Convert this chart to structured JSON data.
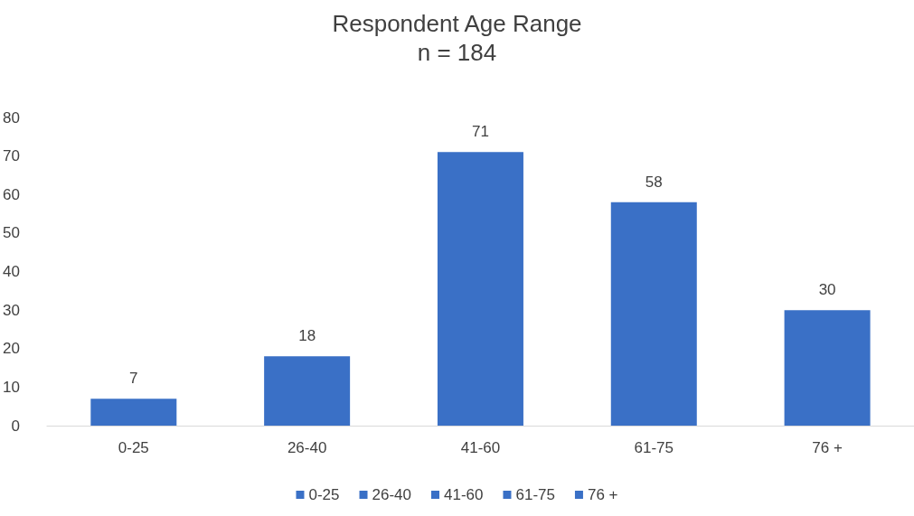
{
  "chart_data": {
    "type": "bar",
    "title": "Respondent Age Range",
    "subtitle": "n = 184",
    "categories": [
      "0-25",
      "26-40",
      "41-60",
      "61-75",
      "76 +"
    ],
    "series": [
      {
        "name": "0-25",
        "color": "#3a70c6",
        "values": [
          7,
          null,
          null,
          null,
          null
        ]
      },
      {
        "name": "26-40",
        "color": "#3a70c6",
        "values": [
          null,
          18,
          null,
          null,
          null
        ]
      },
      {
        "name": "41-60",
        "color": "#3a70c6",
        "values": [
          null,
          null,
          71,
          null,
          null
        ]
      },
      {
        "name": "61-75",
        "color": "#3a70c6",
        "values": [
          null,
          null,
          null,
          58,
          null
        ]
      },
      {
        "name": "76 +",
        "color": "#3a70c6",
        "values": [
          null,
          null,
          null,
          null,
          30
        ]
      }
    ],
    "stacked": true,
    "ylim": [
      0,
      80
    ],
    "yticks": [
      0,
      10,
      20,
      30,
      40,
      50,
      60,
      70,
      80
    ],
    "grid": false,
    "data_labels": true,
    "legend": "bottom"
  }
}
